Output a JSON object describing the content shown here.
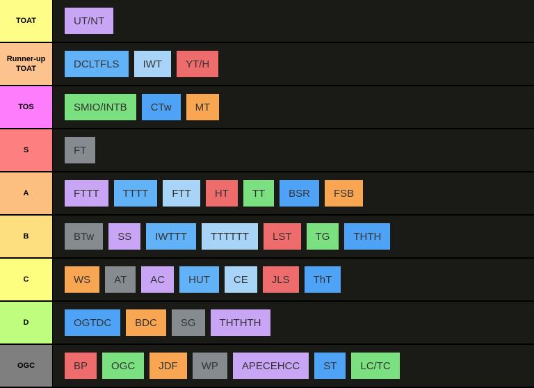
{
  "colors": {
    "purple": "#c9a6f5",
    "blue": "#4fa3f7",
    "lightblue": "#a8d4f7",
    "red": "#ef6c6c",
    "green": "#7be07f",
    "orange": "#f9a652",
    "gray": "#858b8f"
  },
  "tiers": [
    {
      "label": "TOAT",
      "color": "#fdfd88",
      "items": [
        {
          "text": "UT/NT",
          "color": "#c9a6f5"
        }
      ]
    },
    {
      "label": "Runner-up TOAT",
      "color": "#fdc38e",
      "items": [
        {
          "text": "DCLTFLS",
          "color": "#62b2f7"
        },
        {
          "text": "IWT",
          "color": "#a8d4f7"
        },
        {
          "text": "YT/H",
          "color": "#ef6c6c"
        }
      ]
    },
    {
      "label": "TOS",
      "color": "#fd7dfd",
      "items": [
        {
          "text": "SMIO/INTB",
          "color": "#7be07f"
        },
        {
          "text": "CTw",
          "color": "#4fa3f7"
        },
        {
          "text": "MT",
          "color": "#f9a652"
        }
      ]
    },
    {
      "label": "S",
      "color": "#fd7f7f",
      "items": [
        {
          "text": "FT",
          "color": "#858b8f"
        }
      ]
    },
    {
      "label": "A",
      "color": "#fdbf7f",
      "items": [
        {
          "text": "FTTT",
          "color": "#c9a6f5"
        },
        {
          "text": "TTTT",
          "color": "#62b2f7"
        },
        {
          "text": "FTT",
          "color": "#a8d4f7"
        },
        {
          "text": "HT",
          "color": "#ef6c6c"
        },
        {
          "text": "TT",
          "color": "#7be07f"
        },
        {
          "text": "BSR",
          "color": "#4fa3f7"
        },
        {
          "text": "FSB",
          "color": "#f9a652"
        }
      ]
    },
    {
      "label": "B",
      "color": "#fddf7f",
      "items": [
        {
          "text": "BTw",
          "color": "#858b8f"
        },
        {
          "text": "SS",
          "color": "#c9a6f5"
        },
        {
          "text": "IWTTT",
          "color": "#62b2f7"
        },
        {
          "text": "TTTTTT",
          "color": "#a8d4f7"
        },
        {
          "text": "LST",
          "color": "#ef6c6c"
        },
        {
          "text": "TG",
          "color": "#7be07f"
        },
        {
          "text": "THTH",
          "color": "#4fa3f7"
        }
      ]
    },
    {
      "label": "C",
      "color": "#fdfd7f",
      "items": [
        {
          "text": "WS",
          "color": "#f9a652"
        },
        {
          "text": "AT",
          "color": "#858b8f"
        },
        {
          "text": "AC",
          "color": "#c9a6f5"
        },
        {
          "text": "HUT",
          "color": "#62b2f7"
        },
        {
          "text": "CE",
          "color": "#a8d4f7"
        },
        {
          "text": "JLS",
          "color": "#ef6c6c"
        },
        {
          "text": "ThT",
          "color": "#4fa3f7"
        }
      ]
    },
    {
      "label": "D",
      "color": "#bffd7f",
      "items": [
        {
          "text": "OGTDC",
          "color": "#4fa3f7"
        },
        {
          "text": "BDC",
          "color": "#f9a652"
        },
        {
          "text": "SG",
          "color": "#858b8f"
        },
        {
          "text": "THTHTH",
          "color": "#c9a6f5"
        }
      ]
    },
    {
      "label": "OGC",
      "color": "#7f7f7f",
      "items": [
        {
          "text": "BP",
          "color": "#ef6c6c"
        },
        {
          "text": "OGC",
          "color": "#7be07f"
        },
        {
          "text": "JDF",
          "color": "#f9a652"
        },
        {
          "text": "WP",
          "color": "#858b8f"
        },
        {
          "text": "APECEHCC",
          "color": "#c9a6f5"
        },
        {
          "text": "ST",
          "color": "#4fa3f7"
        },
        {
          "text": "LC/TC",
          "color": "#7be07f"
        }
      ]
    }
  ]
}
